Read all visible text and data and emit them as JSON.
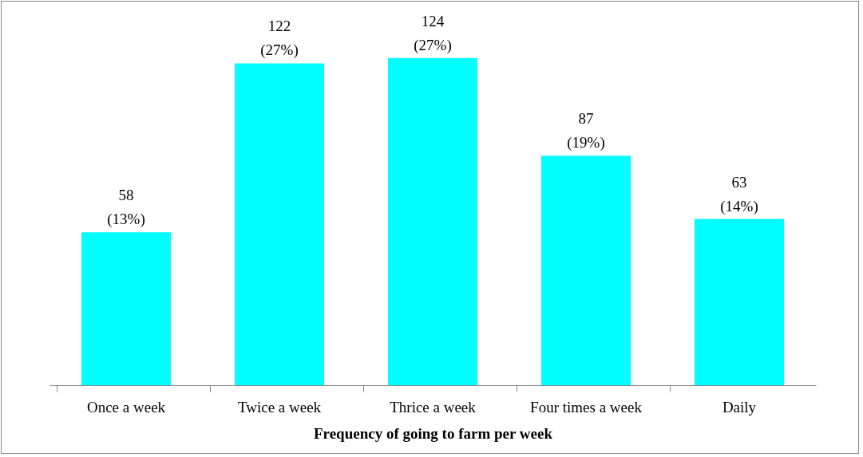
{
  "chart_data": {
    "type": "bar",
    "xlabel": "Frequency of going to farm per week",
    "categories": [
      "Once a week",
      "Twice a week",
      "Thrice a week",
      "Four times a week",
      "Daily"
    ],
    "values": [
      58,
      122,
      124,
      87,
      63
    ],
    "value_labels": [
      "58\n(13%)",
      "122\n(27%)",
      "124\n(27%)",
      "87\n(19%)",
      "63\n(14%)"
    ],
    "color": "#00ffff"
  }
}
